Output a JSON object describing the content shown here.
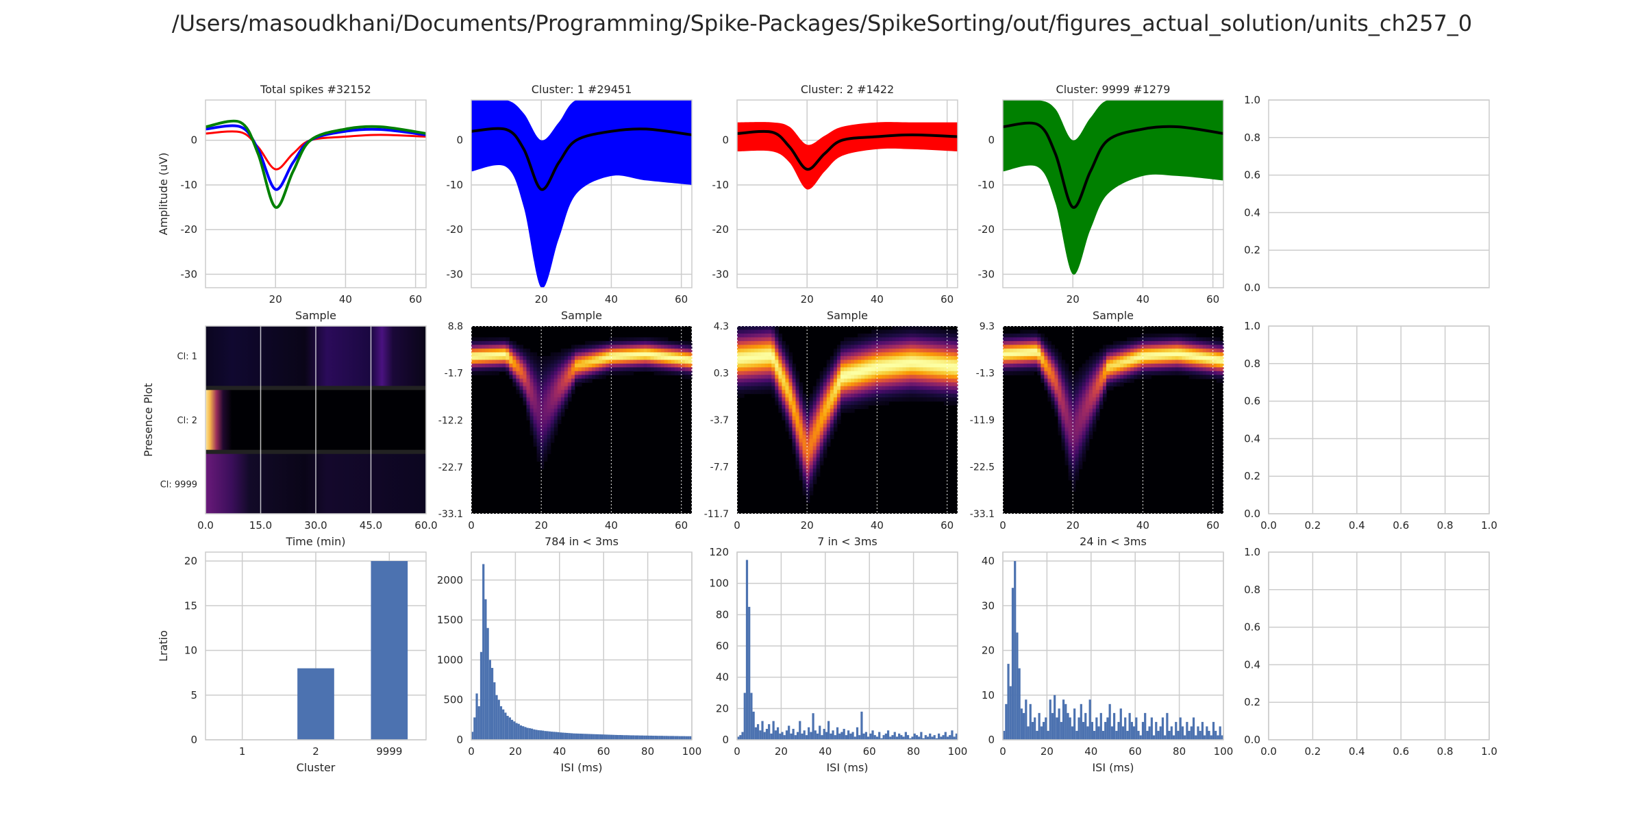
{
  "suptitle": "/Users/masoudkhani/Documents/Programming/Spike-Packages/SpikeSorting/out/figures_actual_solution/units_ch257_0",
  "colors": {
    "grid": "#cccccc",
    "spine": "#cccccc",
    "bar": "#4c72b0",
    "cluster1": "#0000ff",
    "cluster2": "#ff0000",
    "cluster9999": "#008000",
    "mean": "#000000",
    "heat_bg": "#000004"
  },
  "chart_data": [
    {
      "id": "wave_all",
      "type": "line",
      "title": "Total spikes #32152",
      "xlabel": "Sample",
      "ylabel": "Amplitude (uV)",
      "xlim": [
        0,
        63
      ],
      "ylim": [
        -33,
        9
      ],
      "xticks": [
        20,
        40,
        60
      ],
      "yticks": [
        0,
        -10,
        -20,
        -30
      ],
      "grid": true,
      "series": [
        {
          "color": "#ff0000",
          "width": 3,
          "x": [
            0,
            10,
            15,
            20,
            25,
            30,
            40,
            50,
            63
          ],
          "y": [
            1.5,
            1.8,
            -1.5,
            -6.5,
            -3,
            0,
            0.8,
            1.2,
            0.8
          ]
        },
        {
          "color": "#0000ff",
          "width": 4,
          "x": [
            0,
            10,
            15,
            20,
            25,
            30,
            40,
            50,
            63
          ],
          "y": [
            2.5,
            3,
            -2,
            -11,
            -5,
            0,
            2,
            2.4,
            1.2
          ]
        },
        {
          "color": "#008000",
          "width": 4,
          "x": [
            0,
            10,
            15,
            20,
            25,
            30,
            40,
            50,
            63
          ],
          "y": [
            3,
            4,
            -3,
            -15,
            -7,
            0,
            2.5,
            3,
            1.5
          ]
        }
      ]
    },
    {
      "id": "wave_c1",
      "type": "line",
      "title": "Cluster: 1 #29451",
      "xlabel": "Sample",
      "ylabel": "",
      "xlim": [
        0,
        63
      ],
      "ylim": [
        -33,
        9
      ],
      "xticks": [
        20,
        40,
        60
      ],
      "yticks": [
        0,
        -10,
        -20,
        -30
      ],
      "grid": true,
      "band": {
        "color": "#0000ff",
        "x": [
          0,
          10,
          15,
          20,
          25,
          30,
          40,
          50,
          63
        ],
        "upper": [
          9,
          9,
          6,
          0,
          4,
          9,
          9,
          9,
          9
        ],
        "lower": [
          -7,
          -6,
          -15,
          -33,
          -22,
          -12,
          -8,
          -9,
          -10
        ]
      },
      "series": [
        {
          "color": "#000000",
          "width": 4,
          "x": [
            0,
            10,
            15,
            20,
            25,
            30,
            40,
            50,
            63
          ],
          "y": [
            2,
            2.4,
            -2,
            -11,
            -5,
            0,
            2,
            2.5,
            1.2
          ]
        }
      ]
    },
    {
      "id": "wave_c2",
      "type": "line",
      "title": "Cluster: 2 #1422",
      "xlabel": "Sample",
      "ylabel": "",
      "xlim": [
        0,
        63
      ],
      "ylim": [
        -33,
        9
      ],
      "xticks": [
        20,
        40,
        60
      ],
      "yticks": [
        0,
        -10,
        -20,
        -30
      ],
      "grid": true,
      "band": {
        "color": "#ff0000",
        "x": [
          0,
          10,
          15,
          20,
          25,
          30,
          40,
          50,
          63
        ],
        "upper": [
          4,
          4,
          3,
          -1,
          1,
          3,
          4,
          4,
          4
        ],
        "lower": [
          -2.5,
          -2.5,
          -5,
          -11,
          -7,
          -3.5,
          -2,
          -2,
          -2.5
        ]
      },
      "series": [
        {
          "color": "#000000",
          "width": 4,
          "x": [
            0,
            10,
            15,
            20,
            25,
            30,
            40,
            50,
            63
          ],
          "y": [
            1.5,
            1.8,
            -1.5,
            -6.5,
            -3,
            0,
            0.8,
            1.2,
            0.8
          ]
        }
      ]
    },
    {
      "id": "wave_c9999",
      "type": "line",
      "title": "Cluster: 9999 #1279",
      "xlabel": "Sample",
      "ylabel": "",
      "xlim": [
        0,
        63
      ],
      "ylim": [
        -33,
        9
      ],
      "xticks": [
        20,
        40,
        60
      ],
      "yticks": [
        0,
        -10,
        -20,
        -30
      ],
      "grid": true,
      "band": {
        "color": "#008000",
        "x": [
          0,
          10,
          15,
          20,
          25,
          30,
          40,
          50,
          63
        ],
        "upper": [
          9,
          9,
          7,
          0,
          5,
          9,
          9,
          9,
          9
        ],
        "lower": [
          -7,
          -6,
          -14,
          -30,
          -20,
          -12,
          -8,
          -8,
          -9
        ]
      },
      "series": [
        {
          "color": "#000000",
          "width": 4,
          "x": [
            0,
            10,
            15,
            20,
            25,
            30,
            40,
            50,
            63
          ],
          "y": [
            3,
            3.5,
            -3,
            -15,
            -7,
            0,
            2.5,
            3,
            1.5
          ]
        }
      ]
    },
    {
      "id": "empty_r1",
      "type": "line",
      "title": "",
      "xlabel": "",
      "ylabel": "",
      "xlim": [
        0,
        1
      ],
      "ylim": [
        0,
        1
      ],
      "xticks": [],
      "yticks": [
        0.0,
        0.2,
        0.4,
        0.6,
        0.8,
        1.0
      ],
      "yticklabels": [
        "0.0",
        "0.2",
        "0.4",
        "0.6",
        "0.8",
        "1.0"
      ],
      "grid": true,
      "series": []
    },
    {
      "id": "presence",
      "type": "heatmap",
      "title": "",
      "xlabel": "Time (min)",
      "ylabel": "Presence Plot",
      "xlim": [
        0,
        60
      ],
      "xticks": [
        0,
        15,
        30,
        45,
        60
      ],
      "xticklabels": [
        "0.0",
        "15.0",
        "30.0",
        "45.0",
        "60.0"
      ],
      "rows": [
        {
          "label": "Cl: 1",
          "stops": [
            [
              0,
              "#0b0620"
            ],
            [
              0.12,
              "#100830"
            ],
            [
              0.45,
              "#0a0518"
            ],
            [
              0.55,
              "#2b0b5a"
            ],
            [
              0.75,
              "#1a0840"
            ],
            [
              0.8,
              "#4a1280"
            ],
            [
              0.85,
              "#1a0838"
            ],
            [
              1,
              "#0a0518"
            ]
          ]
        },
        {
          "label": "Cl: 2",
          "stops": [
            [
              0,
              "#fde8a0"
            ],
            [
              0.02,
              "#f5b84a"
            ],
            [
              0.05,
              "#9a2e5a"
            ],
            [
              0.08,
              "#20082e"
            ],
            [
              0.12,
              "#000004"
            ],
            [
              1,
              "#000004"
            ]
          ]
        },
        {
          "label": "Cl: 9999",
          "stops": [
            [
              0,
              "#6a1a7a"
            ],
            [
              0.12,
              "#3a0e5a"
            ],
            [
              0.2,
              "#120a28"
            ],
            [
              0.45,
              "#0a0518"
            ],
            [
              0.55,
              "#14082c"
            ],
            [
              1,
              "#0c0620"
            ]
          ]
        }
      ]
    },
    {
      "id": "density_c1",
      "type": "heatmap",
      "title": "",
      "xlabel": "",
      "ylabel": "",
      "xlim": [
        0,
        63
      ],
      "ylim": [
        -33.1,
        8.8
      ],
      "xticks": [
        0,
        20,
        40,
        60
      ],
      "yticks": [
        8.8,
        -1.7,
        -12.2,
        -22.7,
        -33.1
      ],
      "yticklabels": [
        "8.8",
        "-1.7",
        "-12.2",
        "-22.7",
        "-33.1"
      ],
      "center": {
        "x": [
          0,
          10,
          15,
          20,
          25,
          30,
          40,
          50,
          63
        ],
        "y": [
          2,
          2.4,
          -2,
          -11,
          -5,
          0,
          2,
          2.5,
          1.2
        ]
      },
      "spread": [
        1.5,
        1.5,
        2.5,
        6,
        3.5,
        1.8,
        1.5,
        1.5,
        1.5
      ],
      "peak_color": "#fcd36a"
    },
    {
      "id": "density_c2",
      "type": "heatmap",
      "title": "",
      "xlabel": "",
      "ylabel": "",
      "xlim": [
        0,
        63
      ],
      "ylim": [
        -11.7,
        4.3
      ],
      "xticks": [
        0,
        20,
        40,
        60
      ],
      "yticks": [
        4.3,
        0.3,
        -3.7,
        -7.7,
        -11.7
      ],
      "yticklabels": [
        "4.3",
        "0.3",
        "-3.7",
        "-7.7",
        "-11.7"
      ],
      "center": {
        "x": [
          0,
          10,
          15,
          20,
          25,
          30,
          40,
          50,
          63
        ],
        "y": [
          1.5,
          1.8,
          -1.5,
          -6.5,
          -3,
          0,
          0.8,
          1.2,
          0.8
        ]
      },
      "spread": [
        1.2,
        1.2,
        1.4,
        1.8,
        1.5,
        1.2,
        1.2,
        1.2,
        1.2
      ],
      "peak_color": "#fcd36a"
    },
    {
      "id": "density_c9999",
      "type": "heatmap",
      "title": "",
      "xlabel": "",
      "ylabel": "",
      "xlim": [
        0,
        63
      ],
      "ylim": [
        -33.1,
        9.3
      ],
      "xticks": [
        0,
        20,
        40,
        60
      ],
      "yticks": [
        9.3,
        -1.3,
        -11.9,
        -22.5,
        -33.1
      ],
      "yticklabels": [
        "9.3",
        "-1.3",
        "-11.9",
        "-22.5",
        "-33.1"
      ],
      "center": {
        "x": [
          0,
          10,
          15,
          20,
          25,
          30,
          40,
          50,
          63
        ],
        "y": [
          3,
          3.5,
          -3,
          -15,
          -7,
          0,
          2.5,
          3,
          1.5
        ]
      },
      "spread": [
        1.8,
        1.8,
        3,
        6,
        4,
        2,
        1.8,
        1.8,
        1.8
      ],
      "peak_color": "#fcd36a"
    },
    {
      "id": "empty_r2",
      "type": "line",
      "title": "",
      "xlabel": "",
      "ylabel": "",
      "xlim": [
        0,
        1
      ],
      "ylim": [
        0,
        1
      ],
      "xticks": [
        0.0,
        0.2,
        0.4,
        0.6,
        0.8,
        1.0
      ],
      "xticklabels": [
        "0.0",
        "0.2",
        "0.4",
        "0.6",
        "0.8",
        "1.0"
      ],
      "yticks": [
        0.0,
        0.2,
        0.4,
        0.6,
        0.8,
        1.0
      ],
      "yticklabels": [
        "0.0",
        "0.2",
        "0.4",
        "0.6",
        "0.8",
        "1.0"
      ],
      "grid": true,
      "series": []
    },
    {
      "id": "lratio",
      "type": "bar",
      "title": "",
      "xlabel": "Cluster",
      "ylabel": "Lratio",
      "categories": [
        "1",
        "2",
        "9999"
      ],
      "values": [
        0,
        8,
        20
      ],
      "ylim": [
        0,
        21
      ],
      "yticks": [
        0,
        5,
        10,
        15,
        20
      ],
      "grid": true
    },
    {
      "id": "isi_c1",
      "type": "bar",
      "title": "784 in < 3ms",
      "xlabel": "ISI (ms)",
      "ylabel": "",
      "xlim": [
        0,
        100
      ],
      "ylim": [
        0,
        2350
      ],
      "xticks": [
        0,
        20,
        40,
        60,
        80,
        100
      ],
      "yticks": [
        0,
        500,
        1000,
        1500,
        2000
      ],
      "bin_width": 1,
      "counts": [
        100,
        280,
        580,
        420,
        1100,
        2200,
        1760,
        1400,
        1000,
        900,
        720,
        560,
        500,
        420,
        380,
        340,
        300,
        280,
        250,
        230,
        210,
        200,
        180,
        170,
        160,
        150,
        145,
        140,
        130,
        125,
        120,
        118,
        115,
        110,
        108,
        105,
        102,
        100,
        98,
        95,
        92,
        90,
        88,
        86,
        84,
        82,
        80,
        79,
        78,
        77,
        76,
        75,
        74,
        73,
        72,
        71,
        70,
        69,
        68,
        67,
        66,
        65,
        64,
        63,
        62,
        61,
        60,
        60,
        59,
        58,
        58,
        57,
        56,
        56,
        55,
        55,
        54,
        54,
        53,
        53,
        52,
        52,
        51,
        51,
        50,
        50,
        50,
        49,
        49,
        48,
        48,
        48,
        47,
        47,
        46,
        46,
        46,
        45,
        45,
        45
      ],
      "grid": true
    },
    {
      "id": "isi_c2",
      "type": "bar",
      "title": "7 in < 3ms",
      "xlabel": "ISI (ms)",
      "ylabel": "",
      "xlim": [
        0,
        100
      ],
      "ylim": [
        0,
        120
      ],
      "xticks": [
        0,
        20,
        40,
        60,
        80,
        100
      ],
      "yticks": [
        0,
        20,
        40,
        60,
        80,
        100,
        120
      ],
      "bin_width": 1,
      "counts": [
        2,
        3,
        5,
        30,
        115,
        85,
        30,
        18,
        8,
        10,
        6,
        12,
        5,
        7,
        10,
        4,
        12,
        6,
        8,
        4,
        5,
        3,
        6,
        9,
        4,
        7,
        3,
        5,
        12,
        4,
        6,
        3,
        8,
        5,
        17,
        6,
        4,
        9,
        3,
        7,
        5,
        12,
        4,
        6,
        3,
        8,
        4,
        5,
        7,
        3,
        6,
        4,
        5,
        2,
        8,
        3,
        18,
        4,
        5,
        2,
        4,
        6,
        3,
        2,
        5,
        1,
        3,
        4,
        6,
        2,
        3,
        5,
        2,
        4,
        3,
        2,
        5,
        3,
        1,
        2,
        4,
        3,
        2,
        5,
        1,
        3,
        2,
        4,
        2,
        3,
        1,
        4,
        2,
        3,
        5,
        2,
        3,
        6,
        2,
        4
      ],
      "grid": true
    },
    {
      "id": "isi_c9999",
      "type": "bar",
      "title": "24 in < 3ms",
      "xlabel": "ISI (ms)",
      "ylabel": "",
      "xlim": [
        0,
        100
      ],
      "ylim": [
        0,
        42
      ],
      "xticks": [
        0,
        20,
        40,
        60,
        80,
        100
      ],
      "yticks": [
        0,
        10,
        20,
        30,
        40
      ],
      "bin_width": 1,
      "counts": [
        2,
        8,
        17,
        12,
        34,
        40,
        24,
        16,
        7,
        6,
        9,
        3,
        8,
        4,
        5,
        2,
        6,
        3,
        4,
        5,
        2,
        9,
        6,
        10,
        5,
        7,
        4,
        9,
        8,
        6,
        5,
        3,
        7,
        2,
        5,
        8,
        4,
        6,
        3,
        9,
        4,
        2,
        5,
        3,
        6,
        2,
        4,
        5,
        8,
        3,
        6,
        2,
        4,
        7,
        3,
        5,
        2,
        6,
        4,
        3,
        5,
        2,
        1,
        4,
        6,
        2,
        3,
        5,
        1,
        4,
        2,
        3,
        5,
        1,
        6,
        2,
        3,
        1,
        4,
        2,
        5,
        3,
        1,
        4,
        2,
        3,
        5,
        1,
        3,
        2,
        4,
        1,
        3,
        2,
        1,
        4,
        2,
        1,
        3,
        1
      ],
      "grid": true
    },
    {
      "id": "empty_r3",
      "type": "line",
      "title": "",
      "xlabel": "",
      "ylabel": "",
      "xlim": [
        0,
        1
      ],
      "ylim": [
        0,
        1
      ],
      "xticks": [
        0.0,
        0.2,
        0.4,
        0.6,
        0.8,
        1.0
      ],
      "xticklabels": [
        "0.0",
        "0.2",
        "0.4",
        "0.6",
        "0.8",
        "1.0"
      ],
      "yticks": [
        0.0,
        0.2,
        0.4,
        0.6,
        0.8,
        1.0
      ],
      "yticklabels": [
        "0.0",
        "0.2",
        "0.4",
        "0.6",
        "0.8",
        "1.0"
      ],
      "grid": true,
      "series": []
    }
  ]
}
